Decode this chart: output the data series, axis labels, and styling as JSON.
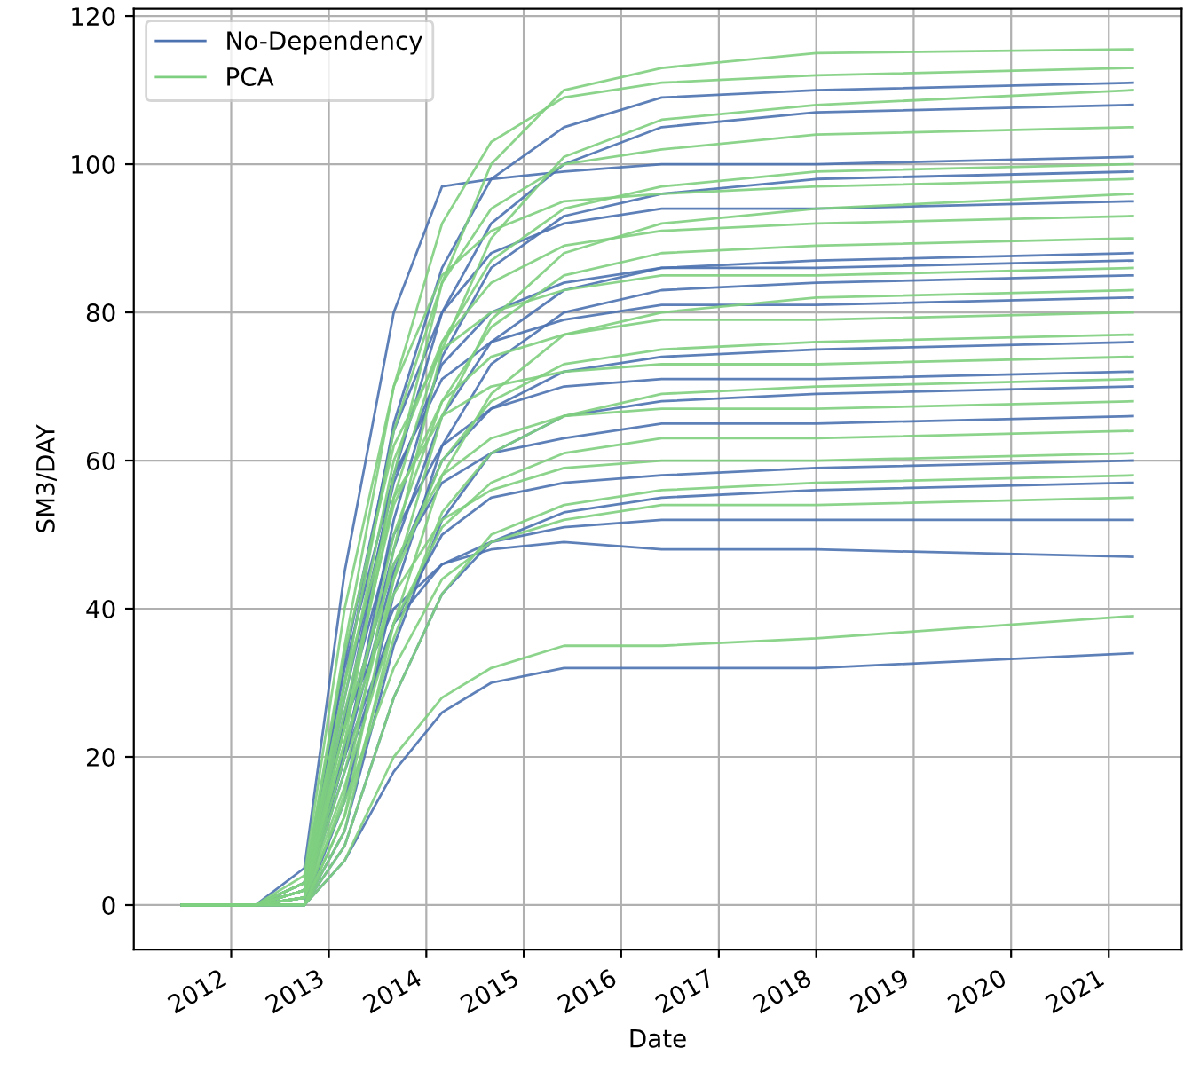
{
  "chart_data": {
    "type": "line",
    "xlabel": "Date",
    "ylabel": "SM3/DAY",
    "x": [
      "2011-07",
      "2012-04",
      "2012-10",
      "2013-03",
      "2013-09",
      "2014-03",
      "2014-09",
      "2015-06",
      "2016-06",
      "2018-01",
      "2021-04"
    ],
    "xlim": [
      "2011-01",
      "2021-10"
    ],
    "xticks": [
      "2012",
      "2013",
      "2014",
      "2015",
      "2016",
      "2017",
      "2018",
      "2019",
      "2020",
      "2021"
    ],
    "ylim": [
      -6,
      121
    ],
    "yticks": [
      0,
      20,
      40,
      60,
      80,
      100,
      120
    ],
    "grid": true,
    "legend": "top left",
    "line_style": "solid",
    "marker": "none",
    "series": [
      {
        "name": "No-Dependency",
        "color": "#4c72b0",
        "values": [
          0,
          0,
          2,
          30,
          65,
          86,
          98,
          105,
          109,
          110,
          111
        ]
      },
      {
        "color": "#4c72b0",
        "values": [
          0,
          0,
          1,
          25,
          58,
          80,
          92,
          100,
          105,
          107,
          108
        ]
      },
      {
        "color": "#4c72b0",
        "values": [
          0,
          0,
          5,
          45,
          80,
          97,
          98,
          99,
          100,
          100,
          101
        ]
      },
      {
        "color": "#4c72b0",
        "values": [
          0,
          0,
          0,
          20,
          52,
          74,
          86,
          93,
          96,
          98,
          99
        ]
      },
      {
        "color": "#4c72b0",
        "values": [
          0,
          0,
          3,
          33,
          64,
          80,
          88,
          92,
          94,
          94,
          95
        ]
      },
      {
        "color": "#4c72b0",
        "values": [
          0,
          0,
          1,
          21,
          48,
          66,
          76,
          83,
          86,
          87,
          88
        ]
      },
      {
        "color": "#4c72b0",
        "values": [
          0,
          0,
          2,
          28,
          57,
          73,
          80,
          84,
          86,
          86,
          87
        ]
      },
      {
        "color": "#4c72b0",
        "values": [
          0,
          0,
          0,
          14,
          42,
          62,
          73,
          80,
          83,
          84,
          85
        ]
      },
      {
        "color": "#4c72b0",
        "values": [
          0,
          0,
          3,
          32,
          58,
          71,
          76,
          79,
          81,
          81,
          82
        ]
      },
      {
        "color": "#4c72b0",
        "values": [
          0,
          0,
          1,
          20,
          45,
          60,
          67,
          72,
          74,
          75,
          76
        ]
      },
      {
        "color": "#4c72b0",
        "values": [
          0,
          0,
          2,
          26,
          50,
          62,
          67,
          70,
          71,
          71,
          72
        ]
      },
      {
        "color": "#4c72b0",
        "values": [
          0,
          0,
          0,
          10,
          35,
          52,
          61,
          66,
          68,
          69,
          70
        ]
      },
      {
        "color": "#4c72b0",
        "values": [
          0,
          0,
          2,
          24,
          46,
          57,
          61,
          63,
          65,
          65,
          66
        ]
      },
      {
        "color": "#4c72b0",
        "values": [
          0,
          0,
          1,
          18,
          38,
          50,
          55,
          57,
          58,
          59,
          60
        ]
      },
      {
        "color": "#4c72b0",
        "values": [
          0,
          0,
          0,
          8,
          28,
          42,
          49,
          53,
          55,
          56,
          57
        ]
      },
      {
        "color": "#4c72b0",
        "values": [
          0,
          0,
          2,
          20,
          38,
          46,
          49,
          51,
          52,
          52,
          52
        ]
      },
      {
        "color": "#4c72b0",
        "values": [
          0,
          0,
          3,
          25,
          40,
          46,
          48,
          49,
          48,
          48,
          47
        ]
      },
      {
        "color": "#4c72b0",
        "values": [
          0,
          0,
          0,
          6,
          18,
          26,
          30,
          32,
          32,
          32,
          34
        ]
      },
      {
        "name": "PCA",
        "color": "#7fcf80",
        "values": [
          0,
          0,
          1,
          22,
          58,
          84,
          100,
          110,
          113,
          115,
          115.5
        ]
      },
      {
        "color": "#7fcf80",
        "values": [
          0,
          0,
          3,
          35,
          70,
          92,
          103,
          109,
          111,
          112,
          113
        ]
      },
      {
        "color": "#7fcf80",
        "values": [
          0,
          0,
          0,
          15,
          48,
          75,
          90,
          101,
          106,
          108,
          110
        ]
      },
      {
        "color": "#7fcf80",
        "values": [
          0,
          0,
          2,
          30,
          64,
          84,
          94,
          100,
          102,
          104,
          105
        ]
      },
      {
        "color": "#7fcf80",
        "values": [
          0,
          0,
          1,
          24,
          55,
          76,
          87,
          94,
          97,
          99,
          100
        ]
      },
      {
        "color": "#7fcf80",
        "values": [
          0,
          0,
          4,
          40,
          70,
          85,
          91,
          95,
          96,
          97,
          98
        ]
      },
      {
        "color": "#7fcf80",
        "values": [
          0,
          0,
          0,
          12,
          44,
          66,
          79,
          88,
          92,
          94,
          96
        ]
      },
      {
        "color": "#7fcf80",
        "values": [
          0,
          0,
          2,
          28,
          60,
          76,
          84,
          89,
          91,
          92,
          93
        ]
      },
      {
        "color": "#7fcf80",
        "values": [
          0,
          0,
          1,
          20,
          50,
          68,
          78,
          85,
          88,
          89,
          90
        ]
      },
      {
        "color": "#7fcf80",
        "values": [
          0,
          0,
          3,
          34,
          62,
          75,
          80,
          83,
          85,
          85,
          86
        ]
      },
      {
        "color": "#7fcf80",
        "values": [
          0,
          0,
          0,
          10,
          38,
          58,
          69,
          77,
          80,
          82,
          83
        ]
      },
      {
        "color": "#7fcf80",
        "values": [
          0,
          0,
          2,
          26,
          54,
          68,
          74,
          77,
          79,
          79,
          80
        ]
      },
      {
        "color": "#7fcf80",
        "values": [
          0,
          0,
          1,
          18,
          44,
          60,
          68,
          73,
          75,
          76,
          77
        ]
      },
      {
        "color": "#7fcf80",
        "values": [
          0,
          0,
          3,
          30,
          55,
          66,
          70,
          72,
          73,
          73,
          74
        ]
      },
      {
        "color": "#7fcf80",
        "values": [
          0,
          0,
          0,
          12,
          36,
          53,
          61,
          66,
          69,
          70,
          71
        ]
      },
      {
        "color": "#7fcf80",
        "values": [
          0,
          0,
          2,
          24,
          46,
          58,
          63,
          66,
          67,
          67,
          68
        ]
      },
      {
        "color": "#7fcf80",
        "values": [
          0,
          0,
          1,
          16,
          38,
          51,
          57,
          61,
          63,
          63,
          64
        ]
      },
      {
        "color": "#7fcf80",
        "values": [
          0,
          0,
          2,
          22,
          42,
          52,
          56,
          59,
          60,
          60,
          61
        ]
      },
      {
        "color": "#7fcf80",
        "values": [
          0,
          0,
          0,
          8,
          28,
          42,
          50,
          54,
          56,
          57,
          58
        ]
      },
      {
        "color": "#7fcf80",
        "values": [
          0,
          0,
          1,
          14,
          32,
          44,
          49,
          52,
          54,
          54,
          55
        ]
      },
      {
        "color": "#7fcf80",
        "values": [
          0,
          0,
          0,
          6,
          20,
          28,
          32,
          35,
          35,
          36,
          39
        ]
      }
    ]
  }
}
